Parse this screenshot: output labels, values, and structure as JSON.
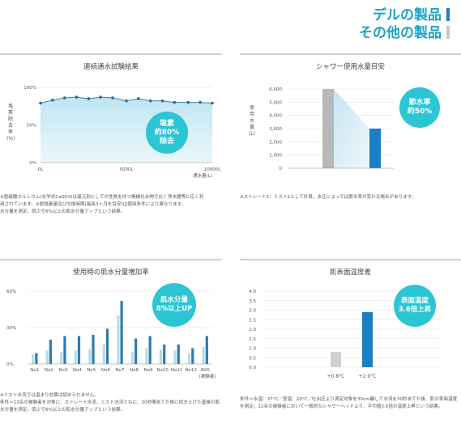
{
  "header": {
    "dell_label": "デルの製品",
    "other_label": "その他の製品",
    "dell_color": "#1a7fc4",
    "other_color": "#b8b8b8"
  },
  "chart_data": [
    {
      "type": "line",
      "title": "連続通水試験結果",
      "ylabel": "塩素除去率 (%)",
      "xlabel": "通水量(L)",
      "ylim": [
        0,
        100
      ],
      "yticks": [
        "0%",
        "50%",
        "100%"
      ],
      "xticks": [
        "0L",
        "5000L",
        "10000L"
      ],
      "xlim": [
        0,
        10000
      ],
      "series": [
        {
          "x": [
            0,
            700,
            1400,
            2100,
            2800,
            3500,
            4200,
            5000,
            5700,
            6400,
            7100,
            7800,
            8600,
            9300,
            10000
          ],
          "values": [
            79,
            83,
            86,
            87,
            85,
            87,
            86,
            82,
            85,
            82,
            82,
            80,
            80,
            80,
            79
          ]
        }
      ],
      "badge": [
        "塩素",
        "約80%",
        "除去"
      ],
      "notes": [
        "※亜硫酸カルシウム(化学式CaSO3)は還元剤としての性質を持つ無機化合物で広く浄水器等に応く利",
        "用されています。※脱塩素量及び交換時期(最長3ヶ月を目安)は使用条件により異なります。",
        "水分量を測定。肌少で6%以上の肌水分量アップという結果。"
      ]
    },
    {
      "type": "bar",
      "title": "シャワー使用水量目安",
      "ylabel": "使用水量 (L)",
      "ylim": [
        0,
        6000
      ],
      "yticks": [
        "0",
        "1,000",
        "2,000",
        "3,000",
        "4,000",
        "5,000",
        "6,000"
      ],
      "series": [
        {
          "name": "その他の製品",
          "values": [
            6000
          ]
        },
        {
          "name": "デルの製品",
          "values": [
            3000
          ]
        }
      ],
      "badge": [
        "節水率",
        "約50%"
      ],
      "notes": [
        "※ストレート1：ミスト2として計算。水圧によっては節水率が変わる場合があります。"
      ]
    },
    {
      "type": "bar",
      "title": "使用時の肌水分量増加率",
      "ylim": [
        0,
        60
      ],
      "yticks": [
        "0%",
        "30%",
        "60%"
      ],
      "categories": [
        "No1",
        "No2",
        "No3",
        "No4",
        "No5",
        "No6",
        "No7",
        "No8",
        "No9",
        "No10",
        "No11",
        "No12",
        "AVG"
      ],
      "extra_label": "(被験者)",
      "series": [
        {
          "name": "その他の製品",
          "values": [
            8,
            11,
            10,
            11,
            12,
            16,
            40,
            10,
            13,
            12,
            11,
            9,
            14
          ]
        },
        {
          "name": "デルの製品",
          "values": [
            9,
            20,
            23,
            23,
            24,
            29,
            52,
            21,
            23,
            16,
            16,
            13,
            23
          ]
        }
      ],
      "badge": [
        "肌水分量",
        "8%以上UP"
      ],
      "notes": [
        "※ミスト水流では温まり効果は認められません。",
        "条件＝12名の被験者を対象に、ストレート水流、ミスト水流ともに、20秒間あてた後に拭き上げた直後の肌",
        "水分量を測定。肌少で6%以上の肌水分量アップという結果。"
      ]
    },
    {
      "type": "bar",
      "title": "肌表面温度差",
      "ylim": [
        0,
        4
      ],
      "yticks": [
        "0.0",
        "0.5",
        "1.0",
        "1.5",
        "2.0",
        "2.5",
        "3.0",
        "3.5",
        "4.0"
      ],
      "series": [
        {
          "name": "その他の製品",
          "values": [
            0.8
          ],
          "label": "+0.8°C"
        },
        {
          "name": "デルの製品",
          "values": [
            2.9
          ],
          "label": "+2.9°C"
        }
      ],
      "badge": [
        "表面温度",
        "3.6倍上昇"
      ],
      "notes": [
        "条件＝水温：37°C／室温：20°C／吐出圧より測定対象を30cm離して水流を30秒あてた後、肌の表面温度",
        "を測定。12名の被験者において一般的なシャワーヘッドより、平均値3.6倍の温度上昇という結果。"
      ]
    }
  ]
}
